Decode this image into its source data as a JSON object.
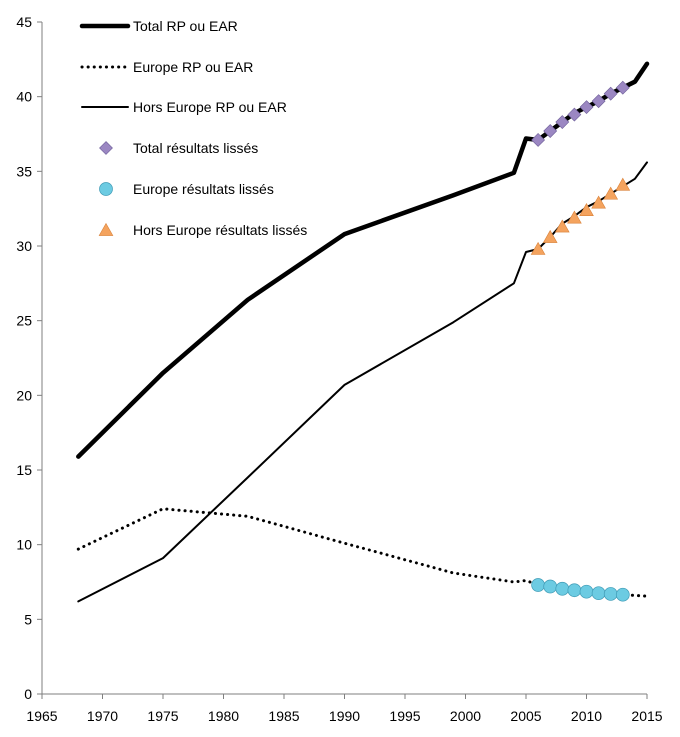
{
  "chart_data": {
    "type": "line",
    "title": "",
    "xlabel": "",
    "ylabel": "",
    "xlim": [
      1965,
      2015
    ],
    "ylim": [
      0,
      45
    ],
    "x_ticks": [
      1965,
      1970,
      1975,
      1980,
      1985,
      1990,
      1995,
      2000,
      2005,
      2010,
      2015
    ],
    "y_ticks": [
      0,
      5,
      10,
      15,
      20,
      25,
      30,
      35,
      40,
      45
    ],
    "grid": false,
    "legend_position": "top-left",
    "series": [
      {
        "name": "Total RP ou EAR",
        "kind": "line",
        "style": "thick",
        "color": "#000000",
        "x": [
          1968,
          1975,
          1982,
          1990,
          1999,
          2004,
          2005,
          2006,
          2007,
          2008,
          2009,
          2010,
          2011,
          2012,
          2013,
          2014,
          2015
        ],
        "y": [
          15.9,
          21.5,
          26.4,
          30.8,
          33.4,
          34.9,
          37.2,
          37.1,
          37.7,
          38.3,
          38.9,
          39.3,
          39.7,
          40.2,
          40.6,
          41.0,
          42.2
        ]
      },
      {
        "name": "Europe RP ou  EAR",
        "kind": "line",
        "style": "dotted",
        "color": "#000000",
        "x": [
          1968,
          1975,
          1982,
          1990,
          1999,
          2004,
          2005,
          2006,
          2007,
          2008,
          2009,
          2010,
          2011,
          2012,
          2013,
          2014,
          2015
        ],
        "y": [
          9.7,
          12.4,
          11.9,
          10.1,
          8.1,
          7.5,
          7.6,
          7.3,
          7.2,
          7.05,
          6.95,
          6.85,
          6.75,
          6.7,
          6.65,
          6.6,
          6.55
        ]
      },
      {
        "name": "Hors Europe RP ou  EAR",
        "kind": "line",
        "style": "thin",
        "color": "#000000",
        "x": [
          1968,
          1975,
          1982,
          1990,
          1999,
          2004,
          2005,
          2006,
          2007,
          2008,
          2009,
          2010,
          2011,
          2012,
          2013,
          2014,
          2015
        ],
        "y": [
          6.2,
          9.1,
          14.5,
          20.7,
          24.9,
          27.5,
          29.6,
          29.8,
          30.6,
          31.5,
          32.0,
          32.6,
          33.0,
          33.5,
          34.0,
          34.5,
          35.6
        ]
      },
      {
        "name": "Total résultats lissés",
        "kind": "marker",
        "marker": "diamond",
        "color": "#9b87c2",
        "x": [
          2006,
          2007,
          2008,
          2009,
          2010,
          2011,
          2012,
          2013
        ],
        "y": [
          37.1,
          37.7,
          38.3,
          38.8,
          39.3,
          39.7,
          40.2,
          40.6
        ]
      },
      {
        "name": "Europe résultats lissés",
        "kind": "marker",
        "marker": "circle",
        "color": "#6ccbe2",
        "x": [
          2006,
          2007,
          2008,
          2009,
          2010,
          2011,
          2012,
          2013
        ],
        "y": [
          7.3,
          7.2,
          7.05,
          6.95,
          6.85,
          6.75,
          6.7,
          6.65
        ]
      },
      {
        "name": "Hors Europe résultats lissés",
        "kind": "marker",
        "marker": "triangle",
        "color": "#f4a35e",
        "x": [
          2006,
          2007,
          2008,
          2009,
          2010,
          2011,
          2012,
          2013
        ],
        "y": [
          29.8,
          30.6,
          31.3,
          31.9,
          32.4,
          32.9,
          33.5,
          34.1
        ]
      }
    ]
  }
}
